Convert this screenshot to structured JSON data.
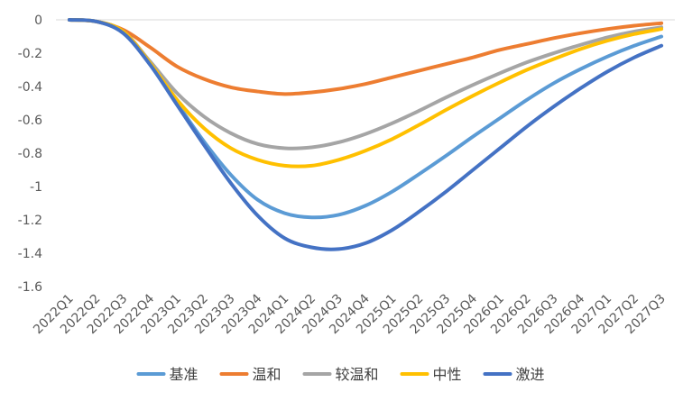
{
  "chart_data": {
    "type": "line",
    "title": "",
    "xlabel": "",
    "ylabel": "",
    "ylim": [
      -1.6,
      0
    ],
    "yticks": [
      0,
      -0.2,
      -0.4,
      -0.6,
      -0.8,
      -1,
      -1.2,
      -1.4,
      -1.6
    ],
    "ytick_labels": [
      "0",
      "-0.2",
      "-0.4",
      "-0.6",
      "-0.8",
      "-1",
      "-1.2",
      "-1.4",
      "-1.6"
    ],
    "categories": [
      "2022Q1",
      "2022Q2",
      "2022Q3",
      "2022Q4",
      "2023Q1",
      "2023Q2",
      "2023Q3",
      "2023Q4",
      "2024Q1",
      "2024Q2",
      "2024Q3",
      "2024Q4",
      "2025Q1",
      "2025Q2",
      "2025Q3",
      "2025Q4",
      "2026Q1",
      "2026Q2",
      "2026Q3",
      "2026Q4",
      "2027Q1",
      "2027Q2",
      "2027Q3"
    ],
    "grid": false,
    "legend_position": "bottom",
    "series": [
      {
        "name": "基准",
        "color": "#5B9BD5",
        "values": [
          0,
          -0.01,
          -0.07,
          -0.26,
          -0.5,
          -0.73,
          -0.93,
          -1.08,
          -1.16,
          -1.185,
          -1.17,
          -1.115,
          -1.03,
          -0.925,
          -0.815,
          -0.7,
          -0.59,
          -0.48,
          -0.38,
          -0.295,
          -0.22,
          -0.155,
          -0.1
        ]
      },
      {
        "name": "温和",
        "color": "#ED7D31",
        "values": [
          0,
          -0.01,
          -0.06,
          -0.165,
          -0.28,
          -0.355,
          -0.405,
          -0.43,
          -0.445,
          -0.435,
          -0.415,
          -0.385,
          -0.345,
          -0.305,
          -0.265,
          -0.225,
          -0.18,
          -0.145,
          -0.11,
          -0.08,
          -0.055,
          -0.035,
          -0.02
        ]
      },
      {
        "name": "较温和",
        "color": "#A5A5A5",
        "values": [
          0,
          -0.01,
          -0.07,
          -0.25,
          -0.44,
          -0.58,
          -0.68,
          -0.745,
          -0.77,
          -0.765,
          -0.735,
          -0.685,
          -0.62,
          -0.545,
          -0.465,
          -0.39,
          -0.32,
          -0.255,
          -0.2,
          -0.15,
          -0.105,
          -0.07,
          -0.045
        ]
      },
      {
        "name": "中性",
        "color": "#FFC000",
        "values": [
          0,
          -0.01,
          -0.07,
          -0.26,
          -0.48,
          -0.65,
          -0.77,
          -0.84,
          -0.875,
          -0.875,
          -0.84,
          -0.785,
          -0.715,
          -0.63,
          -0.54,
          -0.455,
          -0.375,
          -0.3,
          -0.235,
          -0.175,
          -0.125,
          -0.085,
          -0.055
        ]
      },
      {
        "name": "激进",
        "color": "#4472C4",
        "values": [
          0,
          -0.01,
          -0.08,
          -0.27,
          -0.51,
          -0.75,
          -0.98,
          -1.175,
          -1.31,
          -1.365,
          -1.375,
          -1.34,
          -1.26,
          -1.15,
          -1.03,
          -0.9,
          -0.77,
          -0.64,
          -0.52,
          -0.41,
          -0.31,
          -0.225,
          -0.155
        ]
      }
    ]
  }
}
